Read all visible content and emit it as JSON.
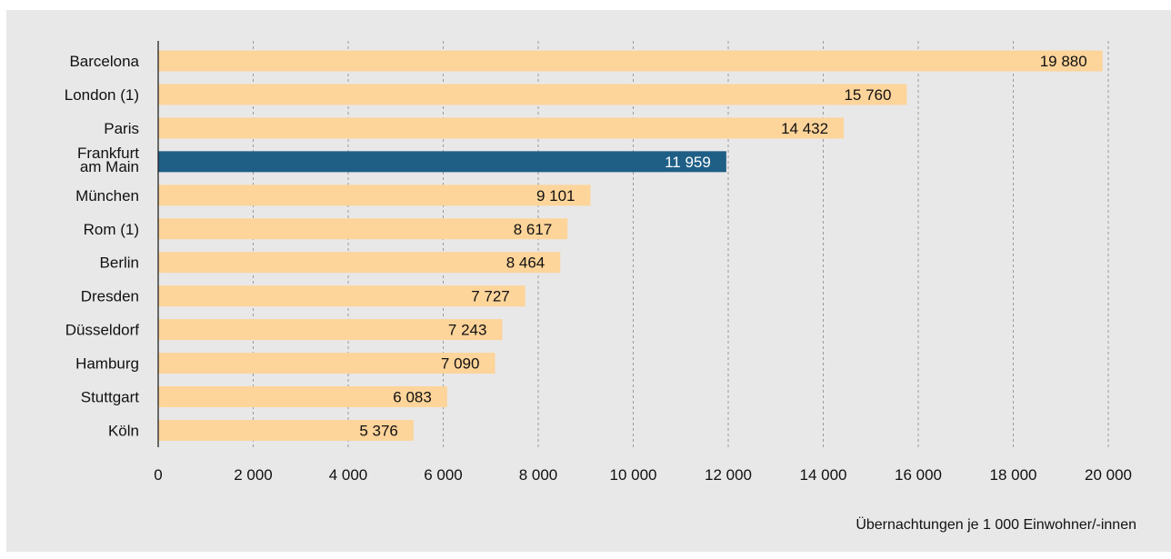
{
  "chart_data": {
    "type": "bar",
    "orientation": "horizontal",
    "categories": [
      [
        "Barcelona"
      ],
      [
        "London (1)"
      ],
      [
        "Paris"
      ],
      [
        "Frankfurt",
        "am Main"
      ],
      [
        "München"
      ],
      [
        "Rom (1)"
      ],
      [
        "Berlin"
      ],
      [
        "Dresden"
      ],
      [
        "Düsseldorf"
      ],
      [
        "Hamburg"
      ],
      [
        "Stuttgart"
      ],
      [
        "Köln"
      ]
    ],
    "values": [
      19880,
      15760,
      14432,
      11959,
      9101,
      8617,
      8464,
      7727,
      7243,
      7090,
      6083,
      5376
    ],
    "value_labels": [
      "19 880",
      "15 760",
      "14 432",
      "11 959",
      "9 101",
      "8 617",
      "8 464",
      "7 727",
      "7 243",
      "7 090",
      "6 083",
      "5 376"
    ],
    "highlight_index": 3,
    "xlim": [
      0,
      20000
    ],
    "xticks": [
      0,
      2000,
      4000,
      6000,
      8000,
      10000,
      12000,
      14000,
      16000,
      18000,
      20000
    ],
    "xtick_labels": [
      "0",
      "2 000",
      "4 000",
      "6 000",
      "8 000",
      "10 000",
      "12 000",
      "14 000",
      "16 000",
      "18 000",
      "20 000"
    ],
    "xlabel": "Übernachtungen je 1 000 Einwohner/-innen",
    "grid": "vertical dashed",
    "colors": {
      "bar": "#fdd49a",
      "highlight": "#1f5f86",
      "background": "#e8e8e9",
      "grid": "#9a9a9a",
      "axis": "#222222"
    }
  }
}
